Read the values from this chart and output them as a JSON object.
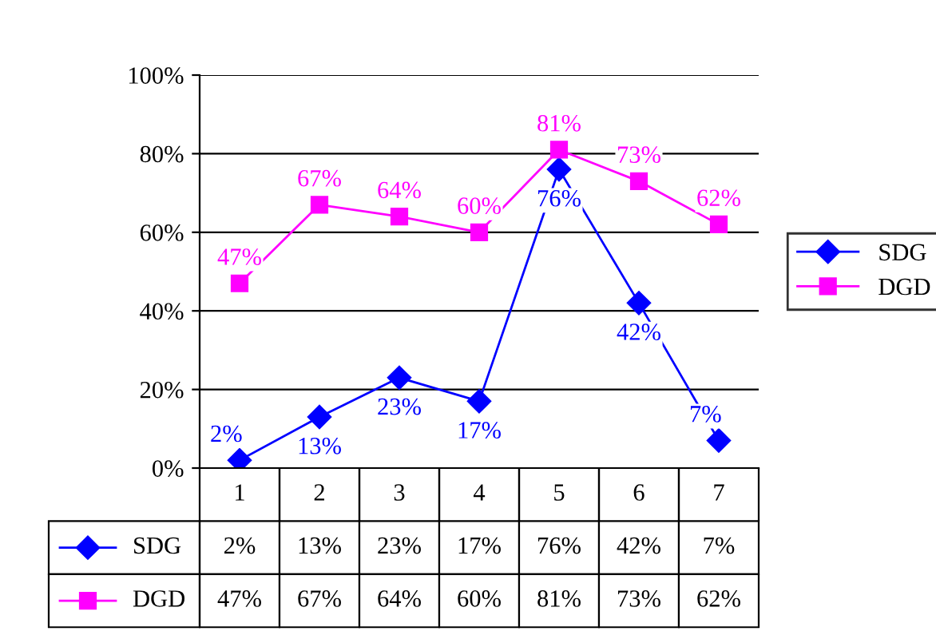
{
  "chart_data": {
    "type": "line",
    "categories": [
      "1",
      "2",
      "3",
      "4",
      "5",
      "6",
      "7"
    ],
    "series": [
      {
        "name": "SDG",
        "color": "#0000ff",
        "marker": "diamond",
        "values": [
          2,
          13,
          23,
          17,
          76,
          42,
          7
        ],
        "value_labels": [
          "2%",
          "13%",
          "23%",
          "17%",
          "76%",
          "42%",
          "7%"
        ]
      },
      {
        "name": "DGD",
        "color": "#ff00ff",
        "marker": "square",
        "values": [
          47,
          67,
          64,
          60,
          81,
          73,
          62
        ],
        "value_labels": [
          "47%",
          "67%",
          "64%",
          "60%",
          "81%",
          "73%",
          "62%"
        ]
      }
    ],
    "ylim": [
      0,
      100
    ],
    "yticks": [
      {
        "value": 0,
        "label": "0%"
      },
      {
        "value": 20,
        "label": "20%"
      },
      {
        "value": 40,
        "label": "40%"
      },
      {
        "value": 60,
        "label": "60%"
      },
      {
        "value": 80,
        "label": "80%"
      },
      {
        "value": 100,
        "label": "100%"
      }
    ],
    "grid": "y",
    "legend": "right",
    "line_style": "solid"
  }
}
